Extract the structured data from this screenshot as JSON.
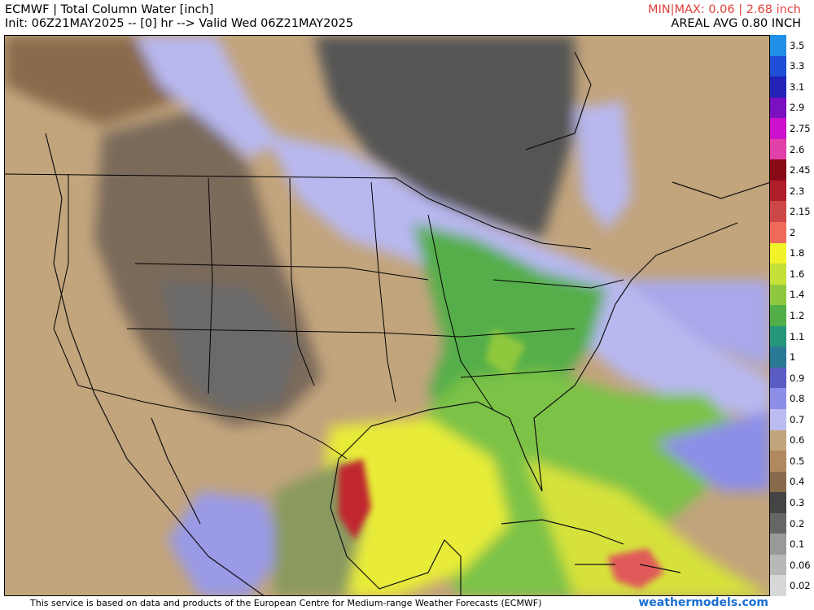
{
  "header": {
    "title": "ECMWF | Total Column Water [inch]",
    "init": "Init: 06Z21MAY2025 -- [0] hr --> Valid Wed 06Z21MAY2025",
    "minmax": "MIN|MAX: 0.06 | 2.68 inch",
    "areal": "AREAL AVG 0.80 INCH"
  },
  "colorbar": {
    "labels": [
      "3.5",
      "3.3",
      "3.1",
      "2.9",
      "2.75",
      "2.6",
      "2.45",
      "2.3",
      "2.15",
      "2",
      "1.8",
      "1.6",
      "1.4",
      "1.2",
      "1.1",
      "1",
      "0.9",
      "0.8",
      "0.7",
      "0.6",
      "0.5",
      "0.4",
      "0.3",
      "0.2",
      "0.1",
      "0.06",
      "0.02"
    ],
    "colors": [
      "#1f8fe8",
      "#1f4fd6",
      "#2222b8",
      "#7a10c0",
      "#cc10cc",
      "#e040a8",
      "#8a0a18",
      "#b01e2a",
      "#cc4848",
      "#f06a5a",
      "#f2f22a",
      "#c6e03a",
      "#8fc83e",
      "#52ae48",
      "#25967a",
      "#2a7a96",
      "#5a5cc4",
      "#8c8ee8",
      "#bcbcf2",
      "#c2a47d",
      "#b08a5e",
      "#8a6a4c",
      "#444444",
      "#666666",
      "#999999",
      "#b8b8b8",
      "#d8d8d8"
    ]
  },
  "footer": {
    "credit": "This service is based on data and products of the European Centre for Medium-range Weather Forecasts (ECMWF)",
    "site": "weathermodels.com"
  }
}
